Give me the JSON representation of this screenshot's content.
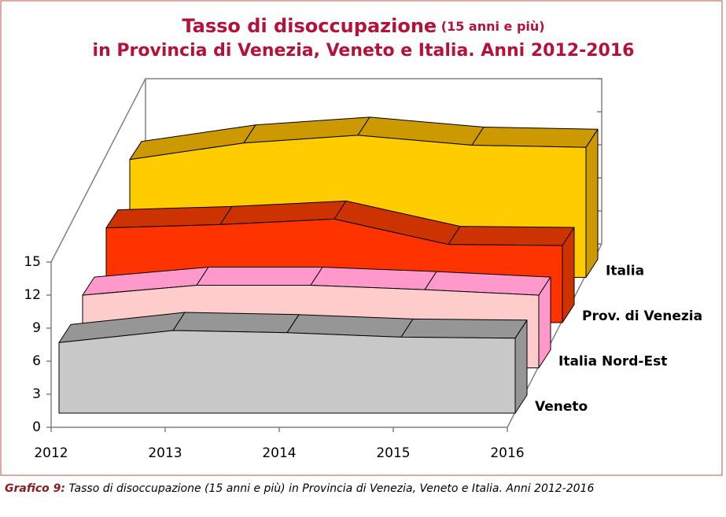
{
  "chart_data": {
    "type": "area3d",
    "title": "Tasso di disoccupazione",
    "title_note": "(15 anni e più)",
    "subtitle": "in Provincia di Venezia, Veneto e Italia. Anni 2012-2016",
    "categories": [
      "2012",
      "2013",
      "2014",
      "2015",
      "2016"
    ],
    "series": [
      {
        "name": "Veneto",
        "color": "#c8c8c8",
        "top_color": "#969696",
        "values": [
          6.4,
          7.5,
          7.3,
          6.9,
          6.8
        ]
      },
      {
        "name": "Italia Nord-Est",
        "color": "#ffcccc",
        "top_color": "#ff99cc",
        "values": [
          6.6,
          7.5,
          7.5,
          7.1,
          6.6
        ]
      },
      {
        "name": "Prov. di Venezia",
        "color": "#ff3300",
        "top_color": "#cc3300",
        "values": [
          8.6,
          8.9,
          9.4,
          7.1,
          7.0
        ]
      },
      {
        "name": "Italia",
        "color": "#ffcc00",
        "top_color": "#cc9900",
        "values": [
          10.7,
          12.2,
          12.9,
          12.0,
          11.8
        ]
      }
    ],
    "ylim": [
      0,
      15
    ],
    "yticks": [
      0,
      3,
      6,
      9,
      12,
      15
    ],
    "caption_label": "Grafico 9:",
    "caption": "Tasso di disoccupazione (15 anni e più) in Provincia di Venezia, Veneto e Italia. Anni 2012-2016"
  }
}
